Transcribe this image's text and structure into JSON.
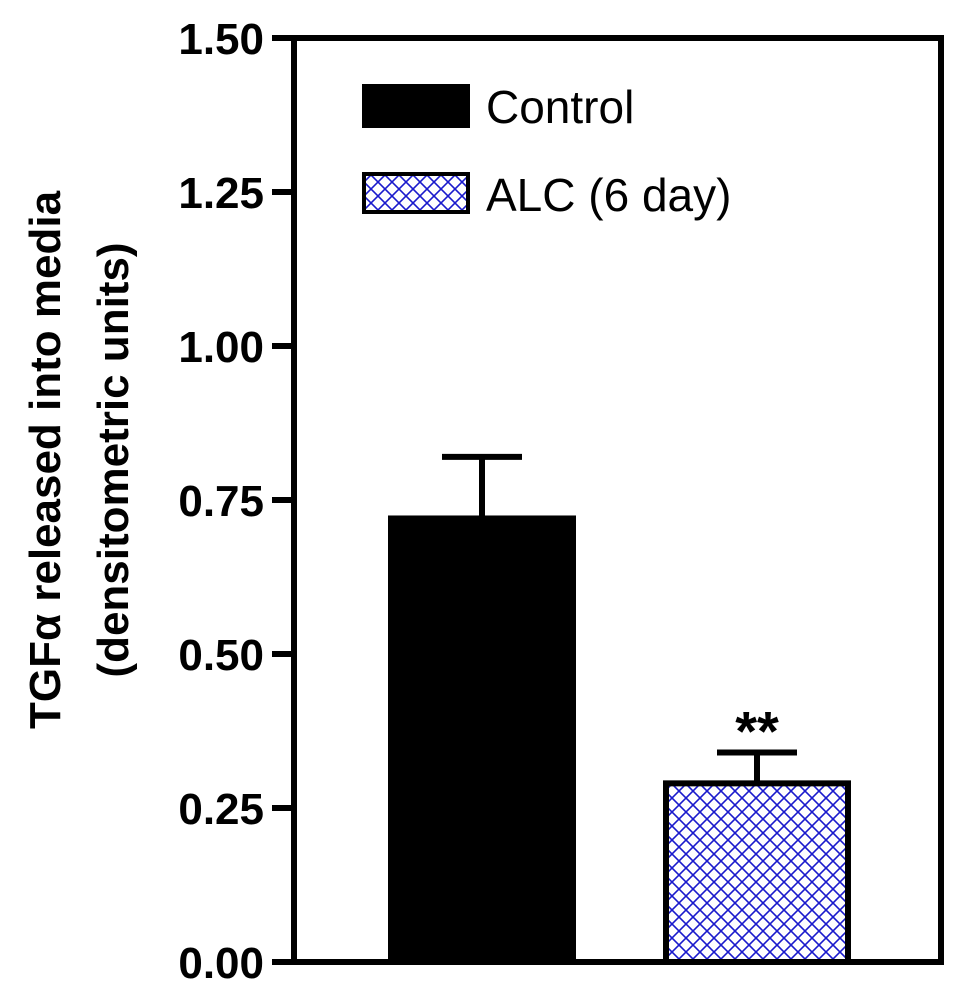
{
  "chart_data": {
    "type": "bar",
    "categories": [
      "Control",
      "ALC (6 day)"
    ],
    "values": [
      0.72,
      0.29
    ],
    "errors": [
      0.1,
      0.05
    ],
    "ylabel_line1": "TGFα released into media",
    "ylabel_line2": "(densitometric units)",
    "xlabel": "",
    "ylim": [
      0,
      1.5
    ],
    "yticks": [
      "0.00",
      "0.25",
      "0.50",
      "0.75",
      "1.00",
      "1.25",
      "1.50"
    ],
    "legend": [
      {
        "label": "Control",
        "style": "solid"
      },
      {
        "label": "ALC (6 day)",
        "style": "crosshatch"
      }
    ],
    "annotations": [
      {
        "category": "ALC (6 day)",
        "text": "**"
      }
    ],
    "colors": {
      "control_fill": "#000000",
      "hatch": "#1a1acc",
      "axis": "#000000"
    }
  }
}
